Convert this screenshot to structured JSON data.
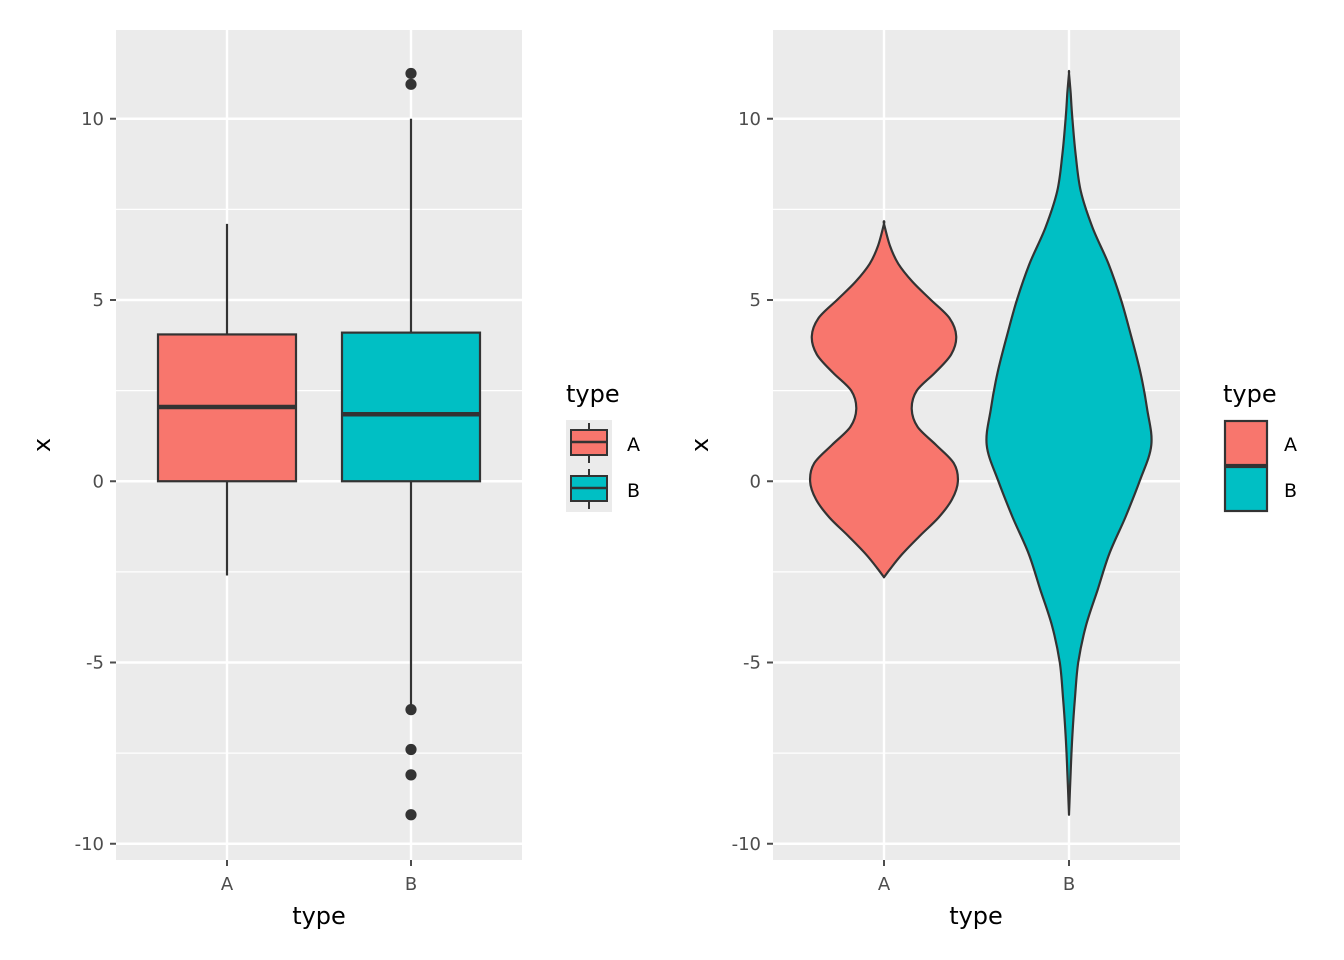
{
  "colors": {
    "A": "#F8766D",
    "B": "#00BFC4",
    "panel": "#EBEBEB",
    "grid": "#FFFFFF",
    "outline": "#333333",
    "tick": "#4D4D4D"
  },
  "chart_data": [
    {
      "type": "boxplot",
      "xlabel": "type",
      "ylabel": "x",
      "categories": [
        "A",
        "B"
      ],
      "ylim": [
        -10.2,
        12.2
      ],
      "yticks": [
        -10,
        -5,
        0,
        5,
        10
      ],
      "ytick_labels": [
        "-10",
        "-5",
        "0",
        "5",
        "10"
      ],
      "grid": true,
      "legend": {
        "title": "type",
        "entries": [
          "A",
          "B"
        ],
        "position": "right"
      },
      "boxes": [
        {
          "category": "A",
          "whisker_low": -2.6,
          "q1": 0.0,
          "median": 2.05,
          "q3": 4.05,
          "whisker_high": 7.1,
          "outliers": []
        },
        {
          "category": "B",
          "whisker_low": -6.2,
          "q1": 0.0,
          "median": 1.85,
          "q3": 4.1,
          "whisker_high": 10.0,
          "outliers": [
            -6.3,
            -7.4,
            -8.1,
            -9.2,
            10.95,
            11.25
          ]
        }
      ]
    },
    {
      "type": "violin",
      "xlabel": "type",
      "ylabel": "x",
      "categories": [
        "A",
        "B"
      ],
      "ylim": [
        -10.2,
        12.2
      ],
      "yticks": [
        -10,
        -5,
        0,
        5,
        10
      ],
      "ytick_labels": [
        "-10",
        "-5",
        "0",
        "5",
        "10"
      ],
      "grid": true,
      "legend": {
        "title": "type",
        "entries": [
          "A",
          "B"
        ],
        "position": "right"
      },
      "violins": [
        {
          "category": "A",
          "profile": [
            [
              -2.65,
              0.0
            ],
            [
              -2.4,
              0.08
            ],
            [
              -2.0,
              0.22
            ],
            [
              -1.5,
              0.43
            ],
            [
              -1.0,
              0.65
            ],
            [
              -0.5,
              0.81
            ],
            [
              0.0,
              0.88
            ],
            [
              0.5,
              0.83
            ],
            [
              1.0,
              0.62
            ],
            [
              1.5,
              0.4
            ],
            [
              2.0,
              0.33
            ],
            [
              2.5,
              0.39
            ],
            [
              3.0,
              0.61
            ],
            [
              3.5,
              0.8
            ],
            [
              4.0,
              0.86
            ],
            [
              4.5,
              0.78
            ],
            [
              5.0,
              0.56
            ],
            [
              5.5,
              0.34
            ],
            [
              6.0,
              0.17
            ],
            [
              6.5,
              0.07
            ],
            [
              7.1,
              0.0
            ]
          ]
        },
        {
          "category": "B",
          "profile": [
            [
              -9.2,
              0.0
            ],
            [
              -8.0,
              0.02
            ],
            [
              -7.0,
              0.04
            ],
            [
              -6.0,
              0.07
            ],
            [
              -5.0,
              0.11
            ],
            [
              -4.0,
              0.2
            ],
            [
              -3.0,
              0.34
            ],
            [
              -2.0,
              0.48
            ],
            [
              -1.0,
              0.67
            ],
            [
              0.0,
              0.84
            ],
            [
              1.0,
              0.98
            ],
            [
              2.0,
              0.93
            ],
            [
              3.0,
              0.85
            ],
            [
              4.0,
              0.74
            ],
            [
              5.0,
              0.62
            ],
            [
              6.0,
              0.47
            ],
            [
              7.0,
              0.28
            ],
            [
              8.0,
              0.14
            ],
            [
              9.0,
              0.08
            ],
            [
              10.0,
              0.04
            ],
            [
              10.7,
              0.02
            ],
            [
              11.25,
              0.0
            ]
          ]
        }
      ]
    }
  ]
}
